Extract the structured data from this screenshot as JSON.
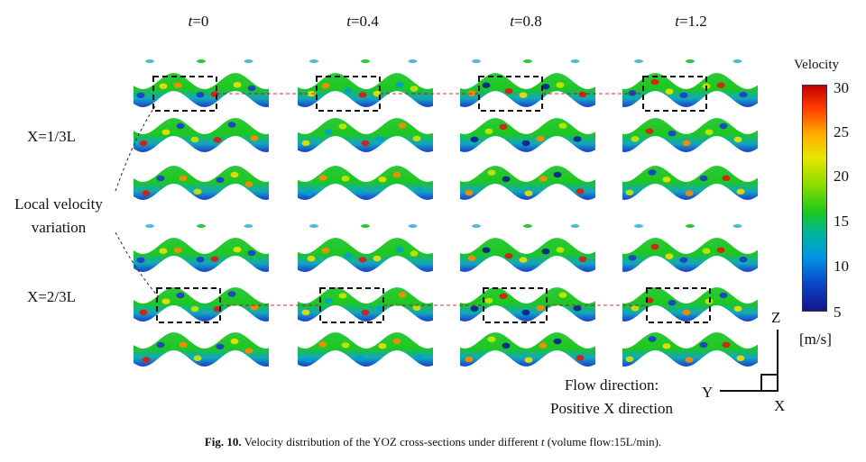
{
  "time_labels": [
    {
      "var": "t",
      "value": "=0"
    },
    {
      "var": "t",
      "value": "=0.4"
    },
    {
      "var": "t",
      "value": "=0.8"
    },
    {
      "var": "t",
      "value": "=1.2"
    }
  ],
  "row_labels": {
    "x1": "X=1/3L",
    "x2": "X=2/3L"
  },
  "annotation": {
    "line1": "Local velocity",
    "line2": "variation"
  },
  "colorbar": {
    "title": "Velocity",
    "ticks": [
      "30",
      "25",
      "20",
      "15",
      "10",
      "5"
    ],
    "unit": "[m/s]",
    "colors": {
      "high": "#c40000",
      "mid": "#1ec81e",
      "low": "#14148c"
    }
  },
  "flow": {
    "line1": "Flow direction:",
    "line2": "Positive X direction"
  },
  "axes": {
    "z": "Z",
    "y": "Y",
    "x": "X"
  },
  "caption": {
    "fig": "Fig. 10.",
    "text_before": "Velocity distribution of the YOZ cross-sections under different",
    "var": "t",
    "text_after": "(volume flow:15L/min)."
  }
}
